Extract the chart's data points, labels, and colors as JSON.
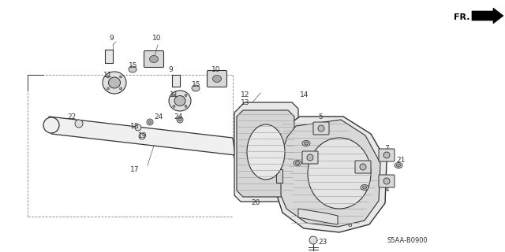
{
  "bg_color": "#ffffff",
  "fig_width": 6.4,
  "fig_height": 3.2,
  "diagram_code": "S5AA-B0900",
  "fr_label": "FR.",
  "dark": "#333333",
  "gray": "#888888",
  "light_gray": "#cccccc",
  "mid_gray": "#aaaaaa"
}
